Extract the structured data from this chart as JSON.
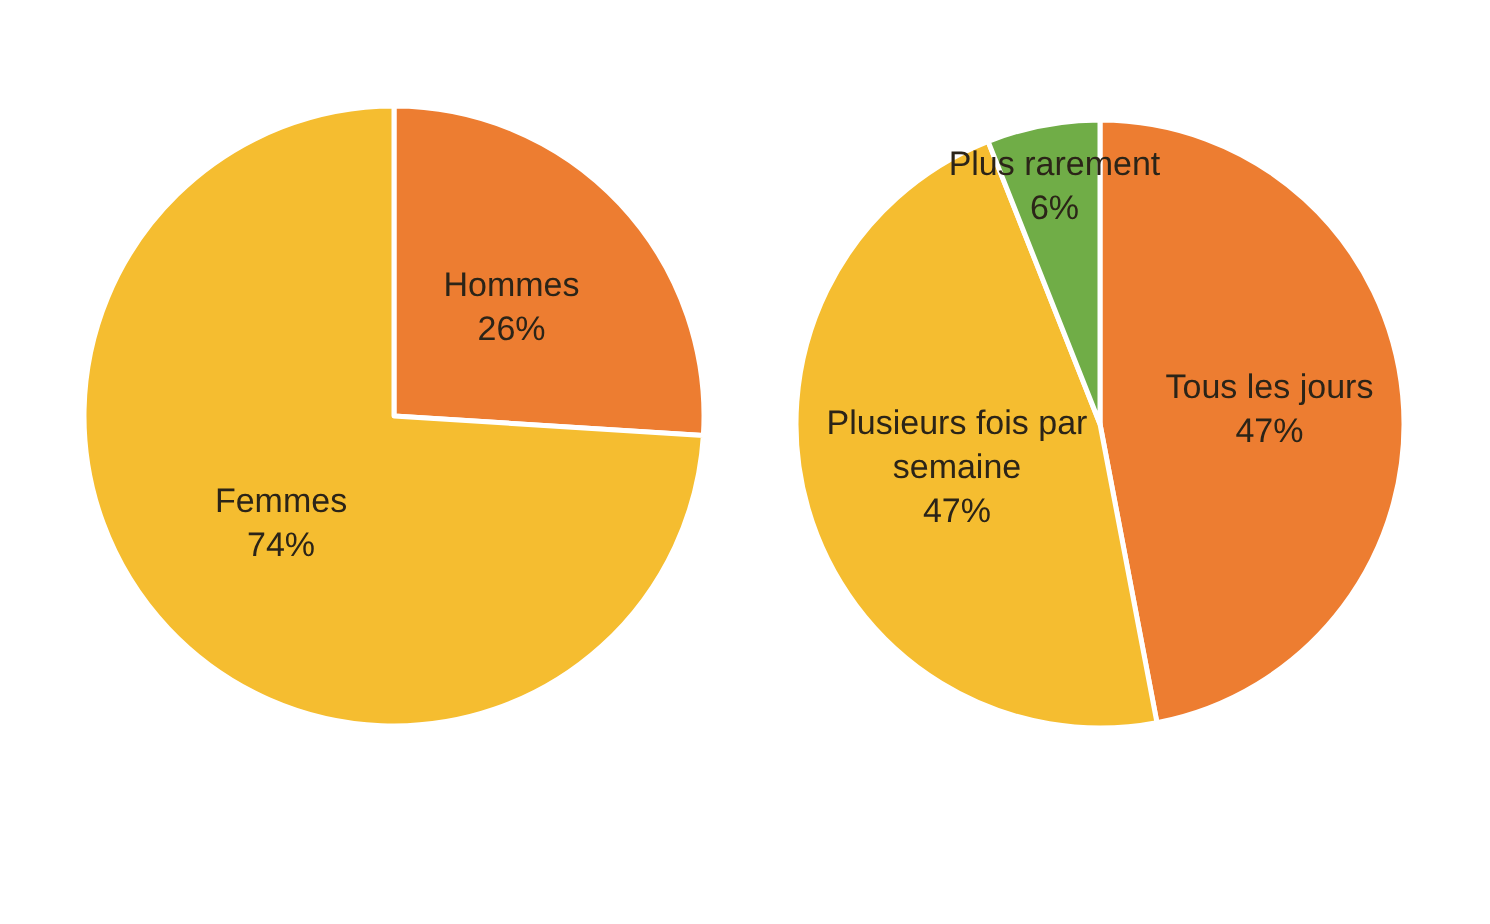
{
  "chart_data": [
    {
      "type": "pie",
      "categories": [
        "Hommes",
        "Femmes"
      ],
      "values": [
        26,
        74
      ],
      "colors": [
        "#ed7d31",
        "#f5bd30"
      ],
      "value_labels": [
        "26%",
        "74%"
      ]
    },
    {
      "type": "pie",
      "categories": [
        "Tous les jours",
        "Plusieurs fois par semaine",
        "Plus rarement"
      ],
      "values": [
        47,
        47,
        6
      ],
      "colors": [
        "#ed7d31",
        "#f5bd30",
        "#70ad47"
      ],
      "value_labels": [
        "47%",
        "47%",
        "6%"
      ]
    }
  ]
}
